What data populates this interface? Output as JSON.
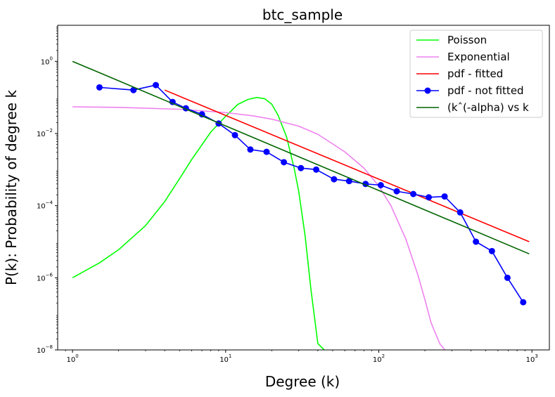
{
  "chart_data": {
    "type": "line",
    "title": "btc_sample",
    "xlabel": "Degree (k)",
    "ylabel": "P(k): Probability of degree k",
    "xscale": "log",
    "yscale": "log",
    "xlim": [
      0.8,
      1300
    ],
    "ylim": [
      1e-08,
      10
    ],
    "x_ticks": [
      {
        "value": 1,
        "base": "10",
        "exp": "0"
      },
      {
        "value": 10,
        "base": "10",
        "exp": "1"
      },
      {
        "value": 100,
        "base": "10",
        "exp": "2"
      },
      {
        "value": 1000,
        "base": "10",
        "exp": "3"
      }
    ],
    "y_ticks": [
      {
        "value": 1,
        "base": "10",
        "exp": "0"
      },
      {
        "value": 0.01,
        "base": "10",
        "exp": "−2"
      },
      {
        "value": 0.0001,
        "base": "10",
        "exp": "−4"
      },
      {
        "value": 1e-06,
        "base": "10",
        "exp": "−6"
      },
      {
        "value": 1e-08,
        "base": "10",
        "exp": "−8"
      }
    ],
    "grid": false,
    "legend_position": "top-right",
    "series": [
      {
        "name": "Poisson",
        "color": "#00ff00",
        "marker": "none",
        "x": [
          1,
          1.5,
          2,
          3,
          4,
          5,
          6,
          8,
          10,
          12,
          14,
          16,
          18,
          20,
          22,
          25,
          28,
          30,
          33,
          36,
          40,
          44
        ],
        "y": [
          1e-06,
          2.6e-06,
          6e-06,
          2.8e-05,
          0.00013,
          0.00056,
          0.0019,
          0.011,
          0.03,
          0.064,
          0.088,
          0.1,
          0.092,
          0.065,
          0.032,
          0.008,
          0.0011,
          0.00025,
          1.5e-05,
          5e-07,
          1.5e-08,
          1e-08
        ]
      },
      {
        "name": "Exponential",
        "color": "#ee82ee",
        "marker": "none",
        "x": [
          1,
          2,
          5,
          10,
          15,
          20,
          30,
          40,
          60,
          80,
          100,
          120,
          150,
          180,
          200,
          220,
          250,
          270
        ],
        "y": [
          0.055,
          0.053,
          0.047,
          0.038,
          0.031,
          0.025,
          0.016,
          0.0095,
          0.0031,
          0.0011,
          0.00035,
          0.0001,
          1.2e-05,
          1.2e-06,
          2.5e-07,
          5.5e-08,
          1.5e-08,
          1e-08
        ]
      },
      {
        "name": "pdf - fitted",
        "color": "#ff0000",
        "marker": "none",
        "x": [
          4,
          960
        ],
        "y": [
          0.16,
          1e-05
        ]
      },
      {
        "name": "pdf - not fitted",
        "color": "#0000ff",
        "marker": "circle",
        "x": [
          1.5,
          2.5,
          3.5,
          4.5,
          5.5,
          7,
          9,
          11.5,
          14.5,
          18.5,
          24,
          31,
          39,
          51,
          64,
          82,
          103,
          131,
          168,
          212,
          269,
          340,
          431,
          548,
          692,
          877
        ],
        "y": [
          0.19,
          0.16,
          0.22,
          0.075,
          0.05,
          0.034,
          0.019,
          0.009,
          0.0036,
          0.0031,
          0.0016,
          0.0011,
          0.001,
          0.00054,
          0.00048,
          0.0004,
          0.00037,
          0.00025,
          0.00021,
          0.00017,
          0.00018,
          6.5e-05,
          1e-05,
          5.5e-06,
          1e-06,
          2.1e-07
        ]
      },
      {
        "name": "(kˆ(-alpha) vs k",
        "color": "#006400",
        "marker": "none",
        "x": [
          1,
          960
        ],
        "y": [
          1,
          4.6e-06
        ]
      }
    ]
  }
}
